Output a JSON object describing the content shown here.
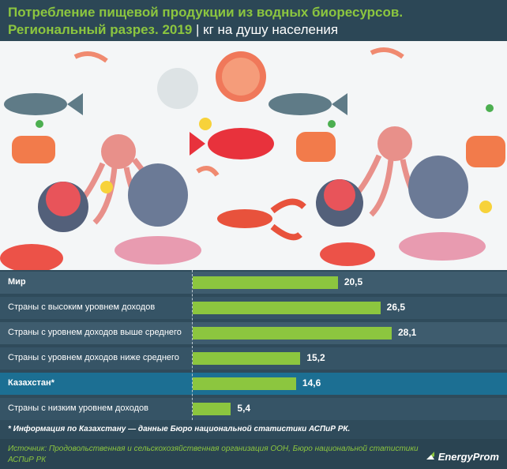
{
  "header": {
    "title": "Потребление пищевой продукции из водных биоресурсов. Региональный разрез. 2019",
    "separator": "|",
    "unit": "кг на душу населения"
  },
  "chart_data": {
    "type": "bar",
    "orientation": "horizontal",
    "categories": [
      "Мир",
      "Страны с высоким уровнем доходов",
      "Страны с уровнем доходов выше среднего",
      "Страны с уровнем доходов ниже среднего",
      "Казахстан*",
      "Страны с низким уровнем доходов"
    ],
    "values": [
      20.5,
      26.5,
      28.1,
      15.2,
      14.6,
      5.4
    ],
    "value_labels": [
      "20,5",
      "26,5",
      "28,1",
      "15,2",
      "14,6",
      "5,4"
    ],
    "xlim": [
      0,
      35
    ],
    "bar_color": "#8cc63f",
    "highlight_color": "#1c6f93"
  },
  "note": "* Информация по Казахстану — данные Бюро национальной статистики АСПиР РК.",
  "source": "Источник: Продовольственная и сельскохозяйственная организация ООН, Бюро национальной статистики АСПиР РК",
  "logo": "EnergyProm"
}
